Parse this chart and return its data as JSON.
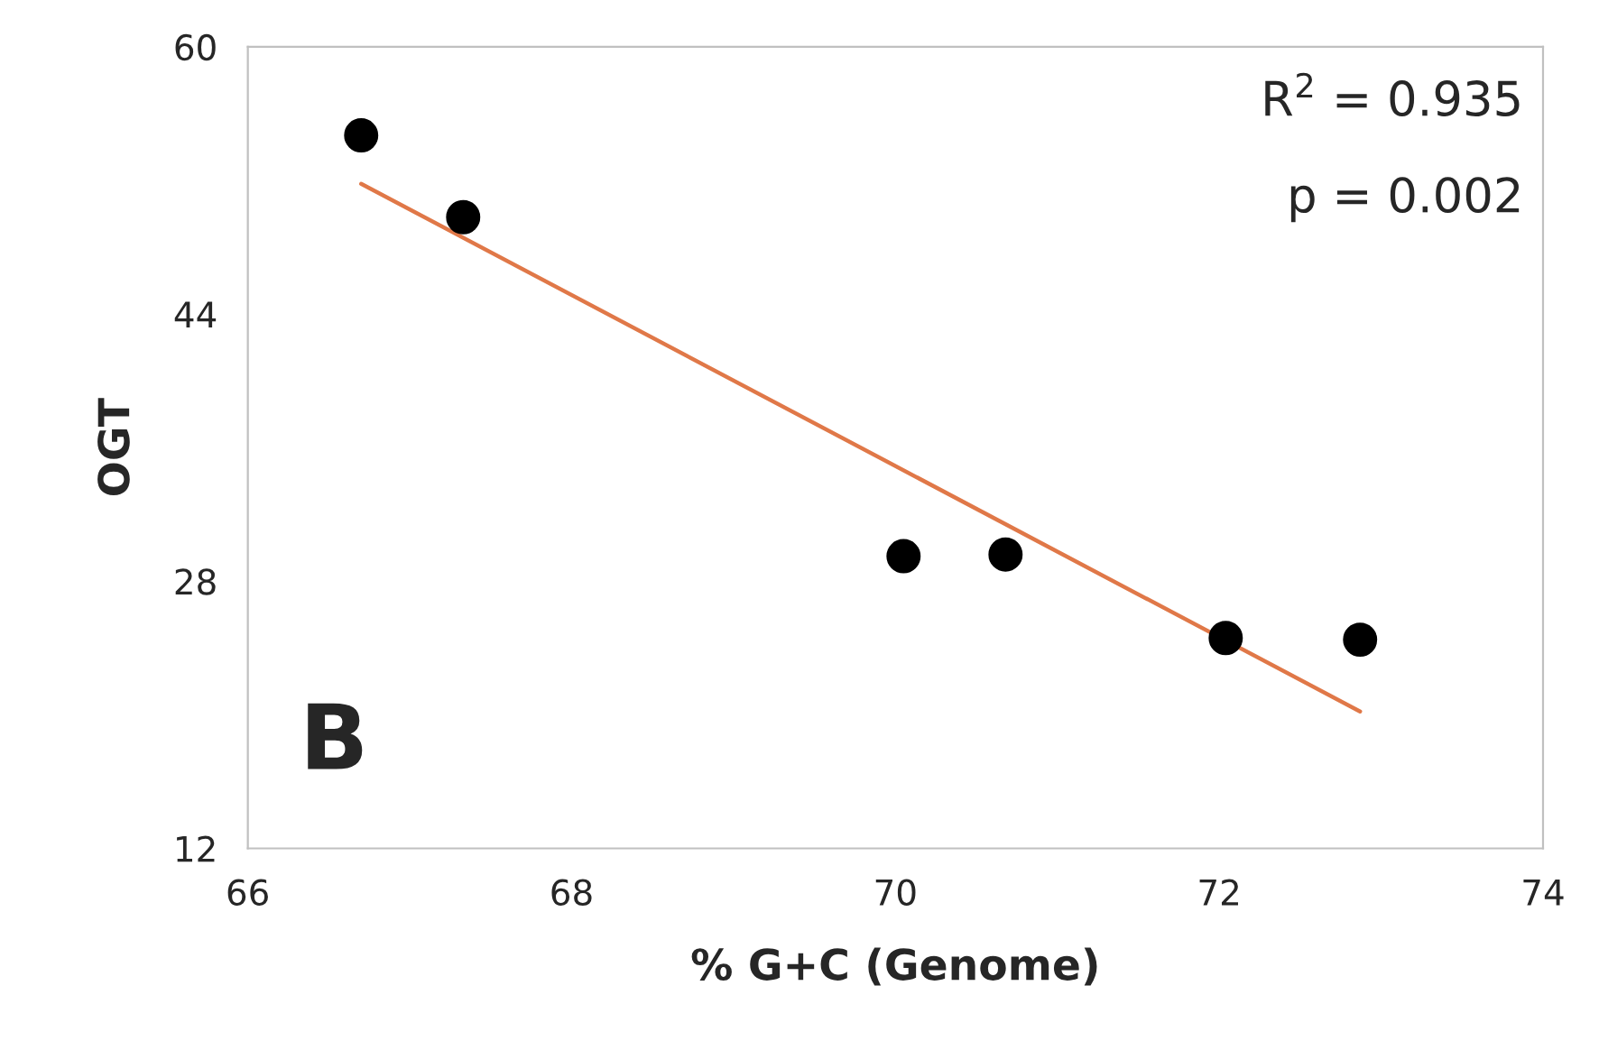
{
  "chart_data": {
    "type": "scatter",
    "xlabel": "% G+C (Genome)",
    "ylabel": "OGT",
    "xlim": [
      66,
      74
    ],
    "xticks": [
      66,
      68,
      70,
      72,
      74
    ],
    "ylim": [
      12,
      60
    ],
    "yticks": [
      12,
      28,
      44,
      60
    ],
    "grid": false,
    "legend": false,
    "series": [
      {
        "marker": "circle",
        "color": "#000000",
        "x": [
          66.7,
          67.33,
          70.05,
          70.68,
          72.04,
          72.87
        ],
        "values": [
          54.7,
          49.8,
          29.5,
          29.6,
          24.6,
          24.5
        ]
      },
      {
        "type": "line",
        "marker": "none",
        "color": "#e07848",
        "x": [
          66.7,
          72.87
        ],
        "values": [
          51.8,
          20.2
        ]
      }
    ],
    "annotations": [
      "R$^{2}$ = 0.935",
      "p = 0.002",
      "B"
    ]
  }
}
